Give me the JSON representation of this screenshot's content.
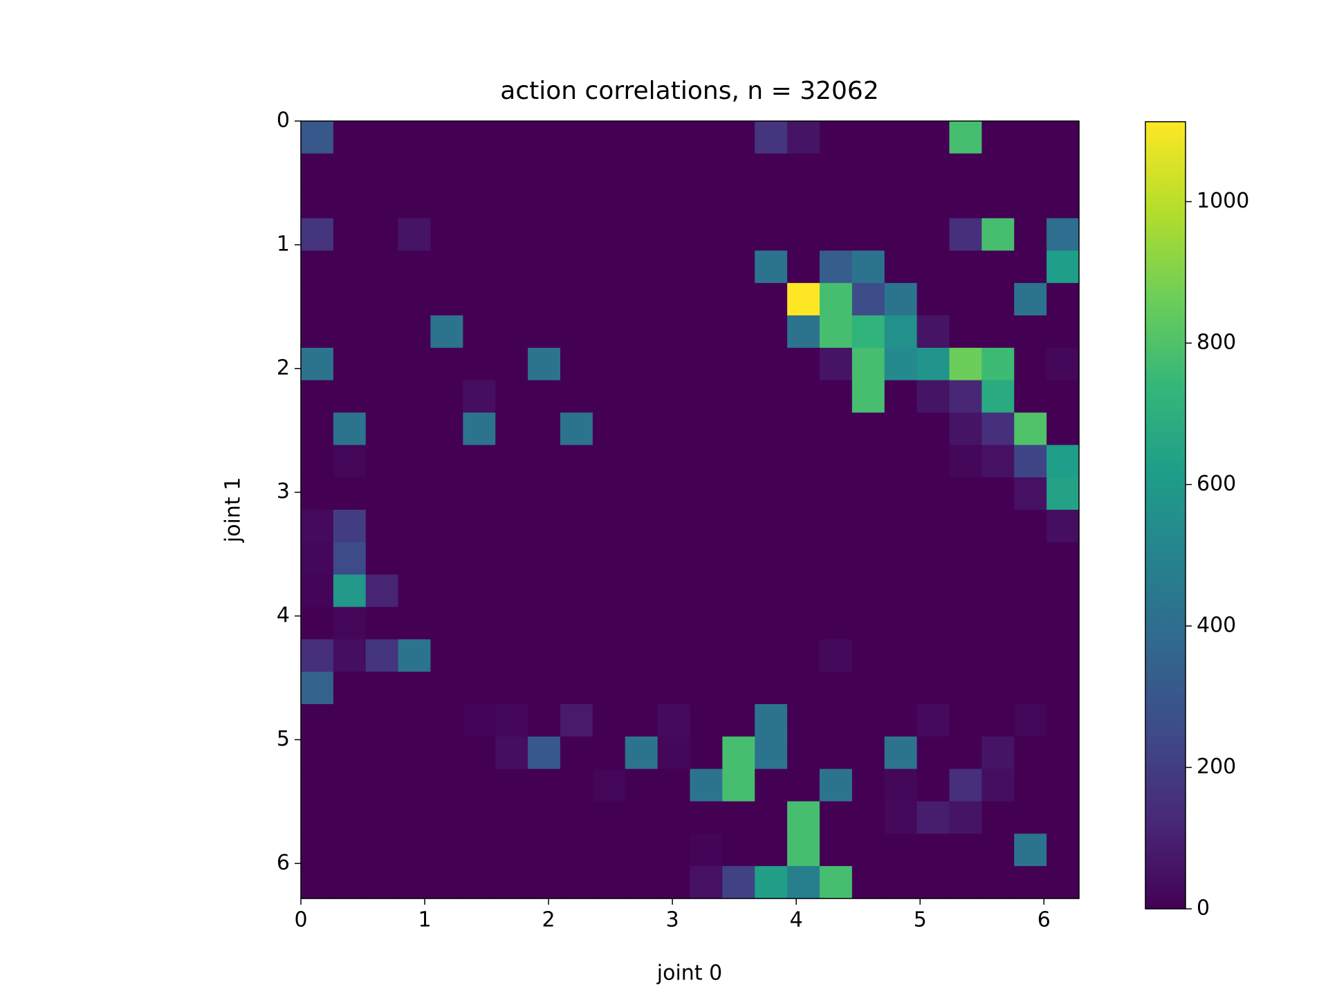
{
  "chart_data": {
    "type": "heatmap",
    "title": "action correlations, n = 32062",
    "x_label": "joint 0",
    "y_label": "joint 1",
    "xlim": [
      0,
      6.283185307
    ],
    "ylim": [
      0,
      6.283185307
    ],
    "invert_y": true,
    "xticks": [
      0,
      1,
      2,
      3,
      4,
      5,
      6
    ],
    "yticks": [
      0,
      1,
      2,
      3,
      4,
      5,
      6
    ],
    "colormap": "viridis",
    "clim": [
      0,
      1113
    ],
    "colorbar_ticks": [
      0,
      200,
      400,
      600,
      800,
      1000
    ],
    "z": [
      [
        300,
        0,
        0,
        0,
        0,
        0,
        0,
        0,
        0,
        0,
        0,
        0,
        0,
        0,
        170,
        60,
        0,
        0,
        0,
        0,
        780,
        0,
        0,
        0
      ],
      [
        0,
        0,
        0,
        0,
        0,
        0,
        0,
        0,
        0,
        0,
        0,
        0,
        0,
        0,
        0,
        0,
        0,
        0,
        0,
        0,
        0,
        0,
        0,
        0
      ],
      [
        0,
        0,
        0,
        0,
        0,
        0,
        0,
        0,
        0,
        0,
        0,
        0,
        0,
        0,
        0,
        0,
        0,
        0,
        0,
        0,
        0,
        0,
        0,
        0
      ],
      [
        170,
        0,
        0,
        60,
        0,
        0,
        0,
        0,
        0,
        0,
        0,
        0,
        0,
        0,
        0,
        0,
        0,
        0,
        0,
        0,
        150,
        780,
        0,
        400
      ],
      [
        0,
        0,
        0,
        0,
        0,
        0,
        0,
        0,
        0,
        0,
        0,
        0,
        0,
        0,
        430,
        0,
        330,
        430,
        0,
        0,
        0,
        0,
        0,
        620
      ],
      [
        0,
        0,
        0,
        0,
        0,
        0,
        0,
        0,
        0,
        0,
        0,
        0,
        0,
        0,
        0,
        1113,
        780,
        260,
        430,
        0,
        0,
        0,
        430,
        0
      ],
      [
        0,
        0,
        0,
        0,
        430,
        0,
        0,
        0,
        0,
        0,
        0,
        0,
        0,
        0,
        0,
        430,
        780,
        720,
        560,
        60,
        0,
        0,
        0,
        0
      ],
      [
        430,
        0,
        0,
        0,
        0,
        0,
        0,
        430,
        0,
        0,
        0,
        0,
        0,
        0,
        0,
        0,
        60,
        780,
        530,
        580,
        860,
        760,
        0,
        20
      ],
      [
        0,
        0,
        0,
        0,
        0,
        40,
        0,
        0,
        0,
        0,
        0,
        0,
        0,
        0,
        0,
        0,
        0,
        780,
        0,
        60,
        120,
        680,
        0,
        0
      ],
      [
        0,
        430,
        0,
        0,
        0,
        430,
        0,
        0,
        430,
        0,
        0,
        0,
        0,
        0,
        0,
        0,
        0,
        0,
        0,
        0,
        60,
        150,
        800,
        0
      ],
      [
        0,
        15,
        0,
        0,
        0,
        0,
        0,
        0,
        0,
        0,
        0,
        0,
        0,
        0,
        0,
        0,
        0,
        0,
        0,
        0,
        20,
        50,
        230,
        620
      ],
      [
        0,
        0,
        0,
        0,
        0,
        0,
        0,
        0,
        0,
        0,
        0,
        0,
        0,
        0,
        0,
        0,
        0,
        0,
        0,
        0,
        0,
        0,
        50,
        640
      ],
      [
        30,
        200,
        0,
        0,
        0,
        0,
        0,
        0,
        0,
        0,
        0,
        0,
        0,
        0,
        0,
        0,
        0,
        0,
        0,
        0,
        0,
        0,
        0,
        40
      ],
      [
        20,
        250,
        0,
        0,
        0,
        0,
        0,
        0,
        0,
        0,
        0,
        0,
        0,
        0,
        0,
        0,
        0,
        0,
        0,
        0,
        0,
        0,
        0,
        0
      ],
      [
        10,
        590,
        110,
        0,
        0,
        0,
        0,
        0,
        0,
        0,
        0,
        0,
        0,
        0,
        0,
        0,
        0,
        0,
        0,
        0,
        0,
        0,
        0,
        0
      ],
      [
        0,
        15,
        0,
        0,
        0,
        0,
        0,
        0,
        0,
        0,
        0,
        0,
        0,
        0,
        0,
        0,
        0,
        0,
        0,
        0,
        0,
        0,
        0,
        0
      ],
      [
        150,
        40,
        170,
        430,
        0,
        0,
        0,
        0,
        0,
        0,
        0,
        0,
        0,
        0,
        0,
        0,
        25,
        0,
        0,
        0,
        0,
        0,
        0,
        0
      ],
      [
        350,
        0,
        0,
        0,
        0,
        0,
        0,
        0,
        0,
        0,
        0,
        0,
        0,
        0,
        0,
        0,
        0,
        0,
        0,
        0,
        0,
        0,
        0,
        0
      ],
      [
        0,
        0,
        0,
        0,
        0,
        10,
        15,
        0,
        80,
        0,
        0,
        30,
        0,
        0,
        430,
        0,
        0,
        0,
        0,
        30,
        0,
        0,
        15,
        0
      ],
      [
        0,
        0,
        0,
        0,
        0,
        0,
        40,
        300,
        0,
        0,
        430,
        20,
        0,
        780,
        430,
        0,
        0,
        0,
        430,
        0,
        0,
        60,
        0,
        0
      ],
      [
        0,
        0,
        0,
        0,
        0,
        0,
        0,
        0,
        0,
        15,
        0,
        0,
        430,
        780,
        0,
        0,
        430,
        0,
        20,
        0,
        150,
        40,
        0,
        0
      ],
      [
        0,
        0,
        0,
        0,
        0,
        0,
        0,
        0,
        0,
        0,
        0,
        0,
        0,
        0,
        0,
        780,
        0,
        0,
        25,
        90,
        60,
        0,
        0,
        0
      ],
      [
        0,
        0,
        0,
        0,
        0,
        0,
        0,
        0,
        0,
        0,
        0,
        0,
        10,
        0,
        0,
        780,
        0,
        0,
        0,
        0,
        0,
        0,
        430,
        0
      ],
      [
        0,
        0,
        0,
        0,
        0,
        0,
        0,
        0,
        0,
        0,
        0,
        0,
        50,
        220,
        630,
        480,
        780,
        0,
        0,
        0,
        0,
        0,
        0,
        0
      ]
    ]
  }
}
